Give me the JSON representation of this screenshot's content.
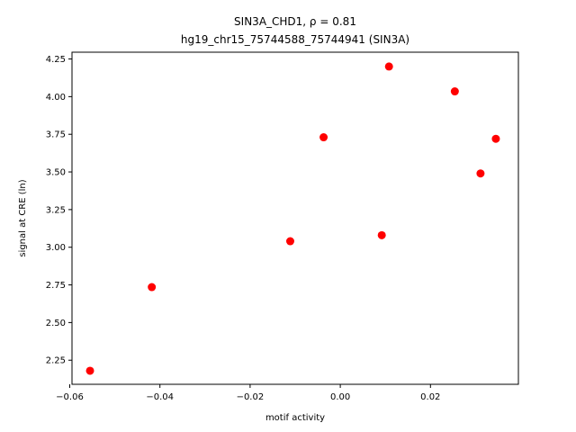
{
  "chart_data": {
    "type": "scatter",
    "title_line1": "SIN3A_CHD1, ρ = 0.81",
    "title_line2": "hg19_chr15_75744588_75744941 (SIN3A)",
    "xlabel": "motif activity",
    "ylabel": "signal at CRE (ln)",
    "xlim": [
      -0.0595,
      0.0395
    ],
    "ylim": [
      2.09,
      4.295
    ],
    "x_ticks": [
      -0.06,
      -0.04,
      -0.02,
      0.0,
      0.02
    ],
    "x_tick_labels": [
      "−0.06",
      "−0.04",
      "−0.02",
      "0.00",
      "0.02"
    ],
    "y_ticks": [
      2.25,
      2.5,
      2.75,
      3.0,
      3.25,
      3.5,
      3.75,
      4.0,
      4.25
    ],
    "y_tick_labels": [
      "2.25",
      "2.50",
      "2.75",
      "3.00",
      "3.25",
      "3.50",
      "3.75",
      "4.00",
      "4.25"
    ],
    "marker_color": "#ff0000",
    "points": [
      {
        "x": -0.0555,
        "y": 2.18
      },
      {
        "x": -0.0418,
        "y": 2.735
      },
      {
        "x": -0.0111,
        "y": 3.04
      },
      {
        "x": -0.0037,
        "y": 3.73
      },
      {
        "x": 0.0092,
        "y": 3.08
      },
      {
        "x": 0.0108,
        "y": 4.2
      },
      {
        "x": 0.0254,
        "y": 4.035
      },
      {
        "x": 0.0311,
        "y": 3.49
      },
      {
        "x": 0.0345,
        "y": 3.72
      }
    ]
  }
}
